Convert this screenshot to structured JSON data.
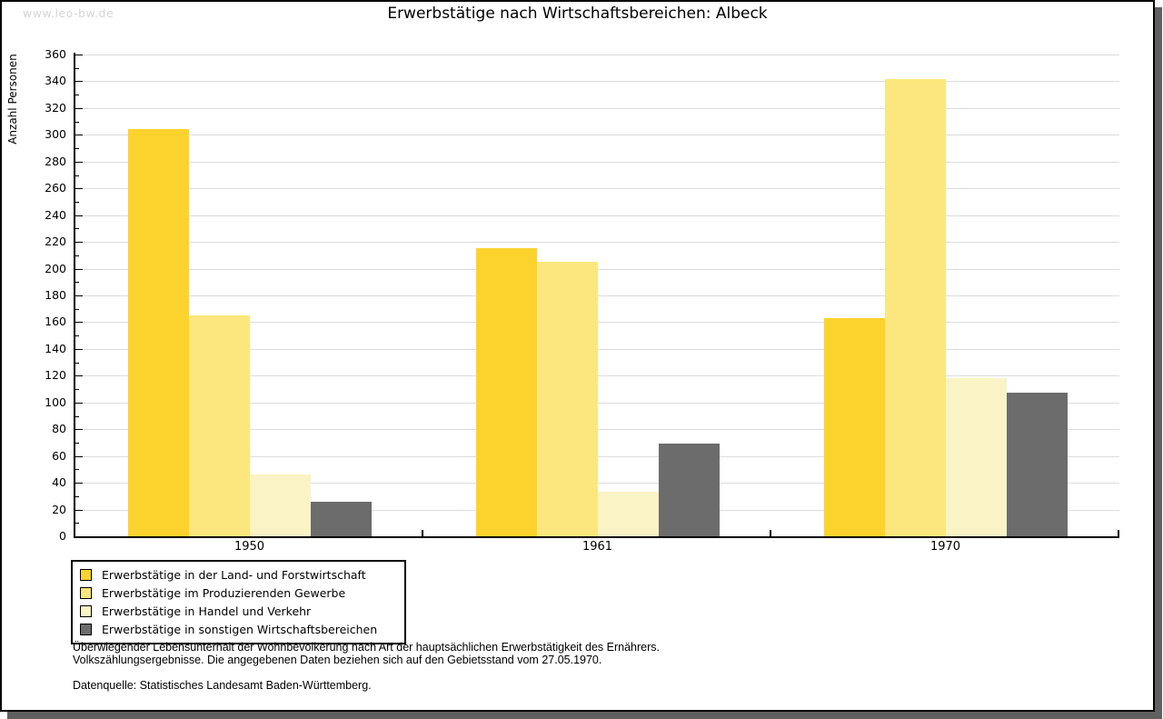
{
  "page": {
    "watermark": "www.leo-bw.de"
  },
  "title": "Erwerbstätige nach Wirtschaftsbereichen: Albeck",
  "chart_data": {
    "type": "bar",
    "title": "Erwerbstätige nach Wirtschaftsbereichen: Albeck",
    "ylabel": "Anzahl Personen",
    "xlabel": "",
    "categories": [
      "1950",
      "1961",
      "1970"
    ],
    "series": [
      {
        "name": "Erwerbstätige in der Land- und Forstwirtschaft",
        "color": "#FCD32D",
        "values": [
          304,
          215,
          163
        ]
      },
      {
        "name": "Erwerbstätige im Produzierenden Gewerbe",
        "color": "#FBE77D",
        "values": [
          165,
          205,
          342
        ]
      },
      {
        "name": "Erwerbstätige in Handel und Verkehr",
        "color": "#FAF3C5",
        "values": [
          46,
          33,
          118
        ]
      },
      {
        "name": "Erwerbstätige in sonstigen Wirtschaftsbereichen",
        "color": "#6C6C6C",
        "values": [
          26,
          69,
          107
        ]
      }
    ],
    "ylim": [
      0,
      360
    ],
    "ytick_step": 20,
    "ytick_minor_step": 10,
    "grid": true,
    "legend_position": "bottom-left"
  },
  "footnotes": {
    "line1": "Überwiegender Lebensunterhalt der Wohnbevölkerung nach Art der hauptsächlichen Erwerbstätigkeit des Ernährers.",
    "line2": "Volkszählungsergebnisse. Die angegebenen Daten beziehen sich auf den Gebietsstand vom 27.05.1970.",
    "source": "Datenquelle: Statistisches Landesamt Baden-Württemberg."
  }
}
